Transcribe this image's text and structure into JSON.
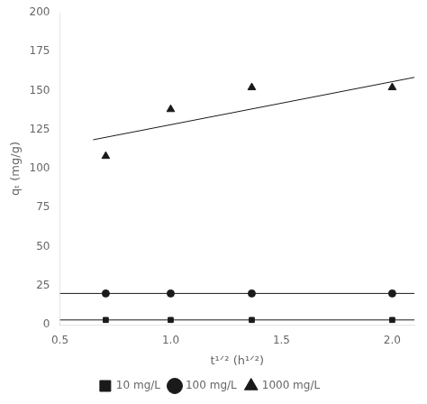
{
  "chart_data": {
    "type": "scatter",
    "x_label": "t¹ᐟ² (h¹ᐟ²)",
    "y_label": "qₜ (mg/g)",
    "series": [
      {
        "type": "line",
        "color": "#1a1a1a",
        "x": [
          0.5,
          2.1
        ],
        "values": [
          3.0,
          3.0
        ]
      },
      {
        "type": "line",
        "color": "#1a1a1a",
        "x": [
          0.5,
          2.1
        ],
        "values": [
          20.0,
          20.0
        ]
      },
      {
        "type": "line",
        "color": "#1a1a1a",
        "x": [
          0.65,
          2.1
        ],
        "values": [
          118.5,
          158.5
        ]
      },
      {
        "type": "scatter",
        "name": "10 mg/L",
        "color": "#1a1a1a",
        "marker": "square",
        "x": [
          0.707,
          1.0,
          1.366,
          2.0
        ],
        "values": [
          3.0,
          3.0,
          3.0,
          3.0
        ]
      },
      {
        "type": "scatter",
        "name": "100 mg/L",
        "color": "#1a1a1a",
        "marker": "circle",
        "x": [
          0.707,
          1.0,
          1.366,
          2.0
        ],
        "values": [
          20.0,
          20.0,
          20.0,
          20.0
        ]
      },
      {
        "type": "scatter",
        "name": "1000 mg/L",
        "color": "#1a1a1a",
        "marker": "triangle",
        "x": [
          0.707,
          1.0,
          1.366,
          2.0
        ],
        "values": [
          108.0,
          138.0,
          152.0,
          152.0
        ]
      }
    ],
    "xlim": [
      0.5,
      2.1
    ],
    "xticks": [
      0.5,
      {
        "value": 1.0,
        "label": "1.0"
      },
      1.5,
      {
        "value": 2.0,
        "label": "2.0"
      }
    ],
    "ylim": [
      0,
      200
    ],
    "yticks": [
      0,
      25,
      50,
      75,
      100,
      125,
      150,
      175,
      200
    ],
    "grid": false,
    "legend": "bottom"
  }
}
